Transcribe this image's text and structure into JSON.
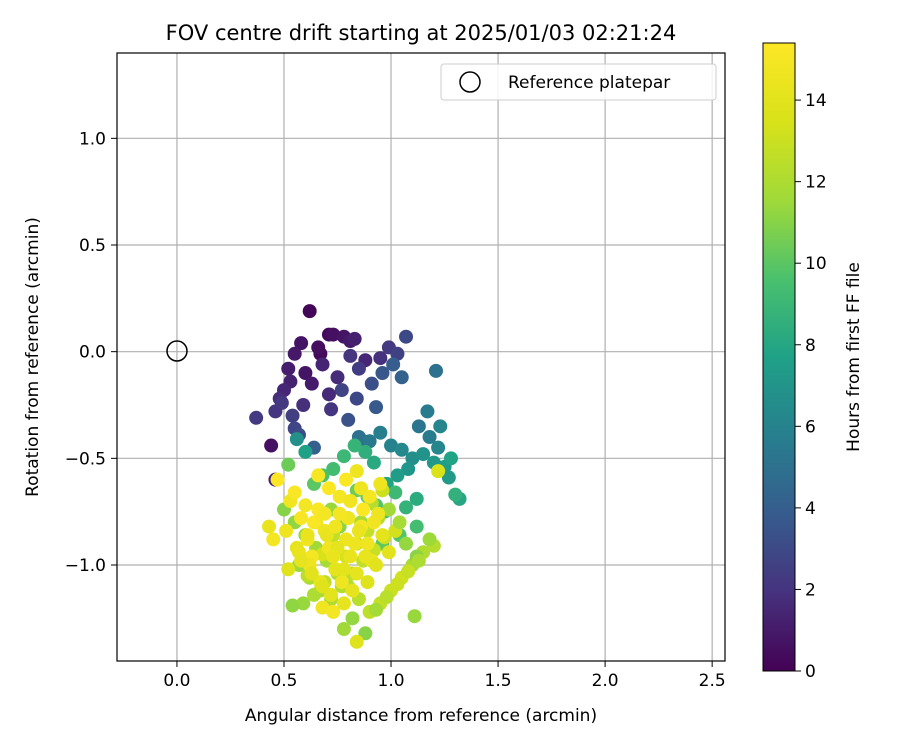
{
  "chart_data": {
    "type": "scatter",
    "title": "FOV centre drift starting at 2025/01/03 02:21:24",
    "xlabel": "Angular distance from reference (arcmin)",
    "ylabel": "Rotation from reference (arcmin)",
    "xlim": [
      -0.28,
      2.56
    ],
    "ylim": [
      -1.45,
      1.4
    ],
    "xticks": [
      0.0,
      0.5,
      1.0,
      1.5,
      2.0,
      2.5
    ],
    "xtick_labels": [
      "0.0",
      "0.5",
      "1.0",
      "1.5",
      "2.0",
      "2.5"
    ],
    "yticks": [
      1.0,
      0.5,
      0.0,
      -0.5,
      -1.0
    ],
    "ytick_labels": [
      "1.0",
      "0.5",
      "0.0",
      "−0.5",
      "−1.0"
    ],
    "grid": true,
    "legend": {
      "placement": "top-right",
      "entries": [
        "Reference platepar"
      ]
    },
    "reference_point": {
      "x": 0.0,
      "y": 0.0,
      "name": "Reference platepar"
    },
    "colorbar": {
      "label": "Hours from first FF file",
      "range": [
        0,
        15.4
      ],
      "ticks": [
        0,
        2,
        4,
        6,
        8,
        10,
        12,
        14
      ],
      "tick_labels": [
        "0",
        "2",
        "4",
        "6",
        "8",
        "10",
        "12",
        "14"
      ],
      "colormap": "viridis"
    },
    "series": [
      {
        "x": [
          0.62,
          0.71,
          0.73,
          0.78,
          0.81,
          0.83,
          0.88,
          0.95,
          0.99,
          1.03,
          1.07,
          0.67,
          0.66,
          0.58,
          0.55,
          0.52,
          0.53,
          0.5,
          0.48,
          0.46,
          0.37,
          0.44,
          0.6,
          0.63,
          0.68,
          0.75,
          0.81,
          0.85,
          0.77,
          0.84,
          0.91,
          0.96,
          1.01,
          1.05,
          0.72,
          0.54,
          0.59,
          0.55,
          0.46,
          0.8,
          0.64,
          0.87,
          0.93,
          0.71,
          0.57,
          0.49
        ],
        "y": [
          0.19,
          0.08,
          0.08,
          0.07,
          0.05,
          0.06,
          -0.04,
          -0.03,
          0.02,
          -0.01,
          0.07,
          -0.01,
          0.02,
          0.04,
          -0.01,
          -0.08,
          -0.14,
          -0.18,
          -0.22,
          -0.28,
          -0.31,
          -0.44,
          -0.1,
          -0.15,
          -0.06,
          -0.12,
          -0.02,
          -0.08,
          -0.18,
          -0.22,
          -0.15,
          -0.1,
          -0.06,
          -0.12,
          -0.27,
          -0.3,
          -0.25,
          -0.36,
          -0.6,
          -0.32,
          -0.45,
          -0.42,
          -0.26,
          -0.2,
          -0.39,
          -0.24
        ],
        "hours": [
          0.2,
          0.4,
          0.6,
          0.8,
          1.0,
          1.2,
          1.5,
          1.9,
          2.3,
          2.6,
          3.0,
          0.3,
          0.5,
          0.7,
          0.9,
          1.1,
          1.3,
          1.5,
          1.7,
          2.0,
          2.3,
          0.6,
          0.8,
          1.0,
          1.4,
          1.7,
          2.1,
          2.4,
          2.7,
          3.0,
          3.3,
          3.6,
          3.9,
          4.2,
          2.0,
          2.5,
          1.8,
          2.8,
          1.3,
          3.4,
          4.0,
          4.4,
          3.7,
          1.6,
          3.1,
          2.2
        ]
      },
      {
        "x": [
          0.85,
          0.9,
          0.95,
          1.0,
          1.05,
          1.1,
          1.15,
          1.2,
          1.25,
          1.28,
          1.32,
          1.22,
          1.18,
          1.13,
          1.08,
          1.03,
          0.98,
          0.92,
          0.88,
          0.83,
          0.78,
          0.73,
          0.68,
          0.64,
          0.6,
          0.56,
          0.52,
          1.12,
          1.07,
          1.02,
          0.97,
          0.93,
          0.89,
          0.84,
          0.8,
          0.76,
          0.72,
          1.17,
          1.23,
          1.27,
          1.3,
          1.12,
          1.04,
          0.96,
          1.21
        ],
        "y": [
          -0.4,
          -0.42,
          -0.38,
          -0.44,
          -0.46,
          -0.5,
          -0.48,
          -0.52,
          -0.54,
          -0.5,
          -0.69,
          -0.45,
          -0.4,
          -0.35,
          -0.55,
          -0.58,
          -0.62,
          -0.52,
          -0.47,
          -0.44,
          -0.49,
          -0.55,
          -0.58,
          -0.62,
          -0.47,
          -0.41,
          -0.53,
          -0.69,
          -0.73,
          -0.66,
          -0.75,
          -0.72,
          -0.68,
          -0.65,
          -0.78,
          -0.82,
          -0.74,
          -0.28,
          -0.35,
          -0.59,
          -0.67,
          -0.82,
          -0.86,
          -0.9,
          -0.09
        ],
        "hours": [
          5.0,
          5.4,
          5.8,
          6.0,
          6.3,
          6.6,
          6.9,
          7.2,
          7.5,
          7.8,
          8.0,
          6.2,
          5.6,
          5.2,
          7.0,
          7.4,
          7.9,
          8.2,
          8.5,
          8.8,
          9.0,
          9.3,
          9.6,
          10.0,
          7.7,
          6.8,
          10.4,
          8.3,
          8.7,
          9.1,
          9.5,
          9.9,
          10.2,
          10.5,
          10.8,
          11.1,
          11.4,
          5.6,
          6.1,
          7.3,
          8.6,
          9.4,
          9.8,
          10.1,
          5.0
        ]
      },
      {
        "x": [
          0.5,
          0.55,
          0.6,
          0.65,
          0.7,
          0.75,
          0.8,
          0.85,
          0.9,
          0.95,
          1.0,
          1.05,
          1.1,
          1.15,
          1.2,
          0.57,
          0.62,
          0.67,
          0.72,
          0.77,
          0.82,
          0.87,
          0.92,
          0.97,
          1.02,
          1.07,
          1.12,
          0.59,
          0.64,
          0.69,
          0.74,
          0.79,
          0.84,
          0.89,
          0.94,
          0.99,
          1.04,
          0.82,
          0.88,
          0.93,
          0.98,
          1.03,
          1.08,
          1.13,
          1.18,
          1.22,
          0.54,
          0.61,
          0.68,
          0.73,
          0.86,
          0.91,
          0.96,
          1.11,
          0.78,
          0.84
        ],
        "y": [
          -0.74,
          -0.8,
          -0.86,
          -0.92,
          -0.98,
          -1.04,
          -1.1,
          -1.16,
          -1.22,
          -1.18,
          -1.12,
          -1.06,
          -1.0,
          -0.94,
          -0.91,
          -1.0,
          -1.06,
          -1.12,
          -1.16,
          -1.1,
          -1.04,
          -0.98,
          -0.93,
          -0.87,
          -0.84,
          -0.9,
          -0.96,
          -1.18,
          -1.14,
          -1.08,
          -1.02,
          -0.96,
          -0.9,
          -0.84,
          -0.78,
          -0.74,
          -0.8,
          -1.25,
          -1.32,
          -1.21,
          -1.15,
          -1.09,
          -1.03,
          -0.98,
          -0.88,
          -0.56,
          -1.19,
          -1.05,
          -0.95,
          -0.86,
          -0.8,
          -0.71,
          -0.65,
          -1.24,
          -1.3,
          -1.36
        ],
        "hours": [
          11.0,
          11.2,
          11.4,
          11.6,
          11.8,
          12.0,
          12.2,
          12.4,
          12.6,
          12.8,
          13.0,
          13.2,
          11.9,
          12.1,
          12.3,
          11.5,
          11.7,
          11.9,
          12.1,
          12.3,
          12.5,
          12.7,
          12.9,
          13.1,
          13.3,
          11.3,
          11.1,
          11.4,
          12.0,
          12.6,
          13.2,
          13.4,
          13.0,
          12.8,
          12.2,
          11.6,
          11.8,
          11.3,
          11.0,
          11.7,
          12.4,
          13.1,
          12.9,
          12.0,
          11.5,
          13.6,
          11.2,
          12.5,
          13.5,
          12.7,
          11.9,
          12.3,
          13.0,
          11.4,
          11.6,
          13.8
        ]
      },
      {
        "x": [
          0.43,
          0.45,
          0.47,
          0.51,
          0.53,
          0.56,
          0.58,
          0.61,
          0.63,
          0.66,
          0.69,
          0.71,
          0.74,
          0.76,
          0.79,
          0.81,
          0.84,
          0.86,
          0.89,
          0.91,
          0.94,
          0.96,
          0.99,
          0.52,
          0.57,
          0.62,
          0.67,
          0.72,
          0.77,
          0.82,
          0.87,
          0.92,
          0.55,
          0.6,
          0.65,
          0.7,
          0.75,
          0.8,
          0.85,
          0.9,
          0.95,
          0.58,
          0.63,
          0.68,
          0.73,
          0.78,
          0.83,
          0.88,
          0.68,
          0.73,
          0.78,
          0.71,
          0.66,
          0.76,
          0.81,
          0.86,
          0.61,
          0.64,
          0.69,
          0.74,
          0.79,
          0.84,
          0.89,
          0.93
        ],
        "y": [
          -0.82,
          -0.88,
          -0.6,
          -0.84,
          -0.7,
          -0.92,
          -0.78,
          -0.88,
          -0.96,
          -0.74,
          -0.84,
          -0.92,
          -1.02,
          -0.68,
          -0.88,
          -0.96,
          -1.04,
          -0.82,
          -0.9,
          -0.98,
          -0.76,
          -0.86,
          -0.94,
          -1.02,
          -0.94,
          -1.0,
          -1.08,
          -1.14,
          -1.08,
          -1.12,
          -0.74,
          -0.8,
          -0.66,
          -0.72,
          -0.8,
          -0.86,
          -0.92,
          -0.78,
          -0.84,
          -0.68,
          -0.62,
          -0.98,
          -1.04,
          -1.1,
          -0.96,
          -1.02,
          -0.9,
          -0.96,
          -1.2,
          -1.22,
          -1.18,
          -0.64,
          -0.58,
          -0.76,
          -0.7,
          -0.64,
          -0.86,
          -0.8,
          -0.76,
          -0.82,
          -0.6,
          -0.56,
          -1.08,
          -1.0
        ],
        "hours": [
          14.3,
          15.0,
          15.3,
          14.6,
          14.8,
          14.2,
          15.1,
          14.7,
          14.9,
          15.2,
          14.5,
          14.8,
          14.1,
          15.0,
          14.6,
          14.4,
          14.2,
          14.9,
          14.7,
          14.3,
          14.5,
          14.1,
          14.0,
          13.9,
          14.4,
          14.6,
          14.3,
          14.1,
          14.7,
          14.2,
          15.3,
          14.8,
          15.2,
          14.9,
          14.5,
          14.3,
          14.1,
          14.7,
          14.4,
          15.0,
          14.6,
          14.2,
          14.0,
          13.9,
          14.4,
          14.1,
          14.5,
          14.3,
          14.7,
          14.9,
          14.2,
          15.3,
          15.1,
          15.0,
          14.8,
          14.6,
          14.4,
          15.2,
          14.9,
          14.7,
          15.3,
          14.5,
          13.8,
          14.0
        ]
      }
    ]
  }
}
